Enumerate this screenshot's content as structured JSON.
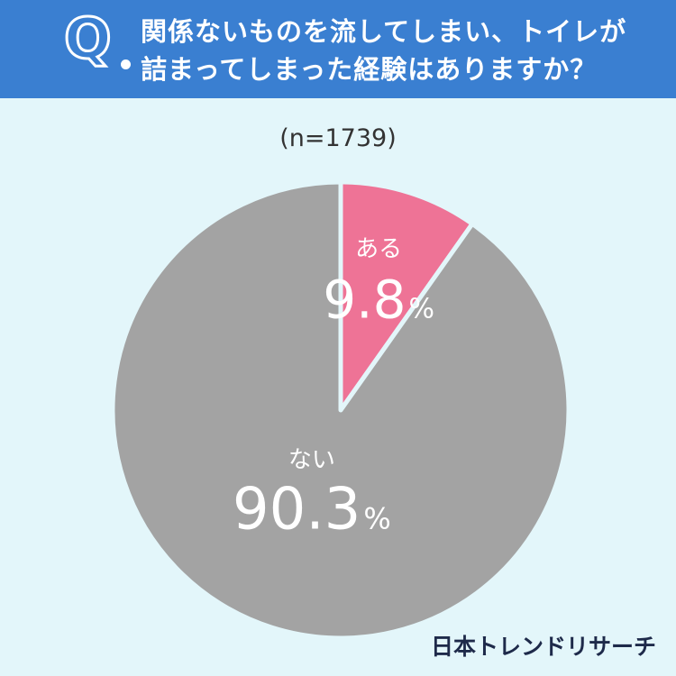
{
  "header": {
    "q_label": "Q",
    "question_line1": "関係ないものを流してしまい、トイレが",
    "question_line2": "詰まってしまった経験はありますか？"
  },
  "sample_size": "(n=1739)",
  "credit": "日本トレンドリサーチ",
  "colors": {
    "header_bg": "#3a7fd1",
    "background": "#e3f6fa",
    "slice_yes": "#ee7396",
    "slice_no": "#a3a3a3"
  },
  "chart_data": {
    "type": "pie",
    "title": "関係ないものを流してしまい、トイレが詰まってしまった経験はありますか？",
    "slices": [
      {
        "label": "ある",
        "value": 9.8,
        "display": "9.8",
        "unit": "%",
        "color": "#ee7396"
      },
      {
        "label": "ない",
        "value": 90.3,
        "display": "90.3",
        "unit": "%",
        "color": "#a3a3a3"
      }
    ]
  }
}
